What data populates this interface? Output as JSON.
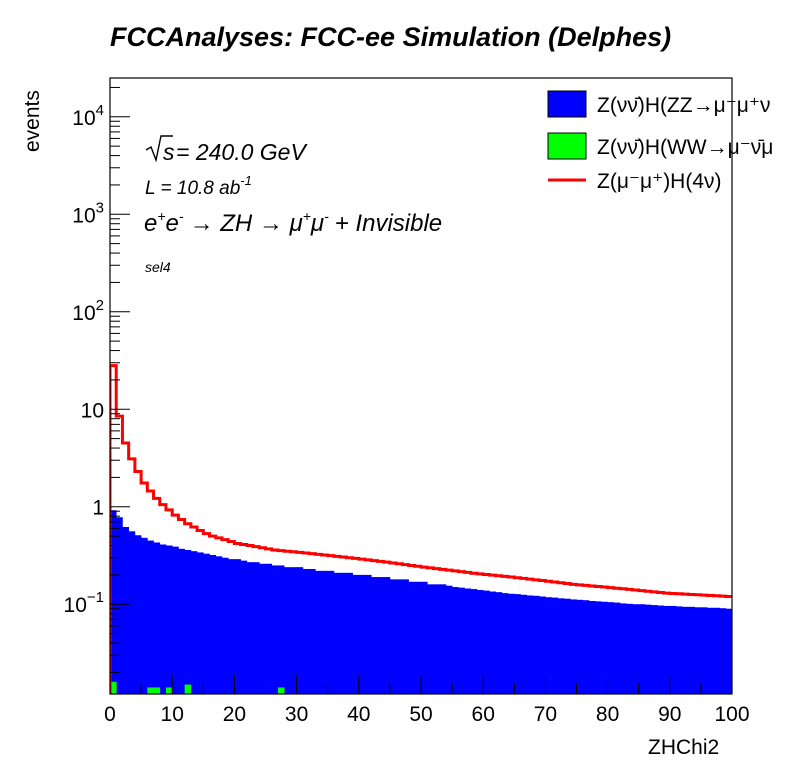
{
  "chart_data": {
    "type": "histogram",
    "title": "FCCAnalyses: FCC-ee Simulation (Delphes)",
    "xlabel": "ZHChi2",
    "ylabel": "events",
    "xlim": [
      0,
      100
    ],
    "ylim": [
      0.012,
      25000
    ],
    "yscale": "log",
    "x_ticks": [
      "0",
      "10",
      "20",
      "30",
      "40",
      "50",
      "60",
      "70",
      "80",
      "90",
      "100"
    ],
    "y_tick_labels": [
      {
        "value": 0.1,
        "base": "10",
        "exp": "−1"
      },
      {
        "value": 1,
        "base": "1",
        "exp": ""
      },
      {
        "value": 10,
        "base": "10",
        "exp": ""
      },
      {
        "value": 100,
        "base": "10",
        "exp": "2"
      },
      {
        "value": 1000,
        "base": "10",
        "exp": "3"
      },
      {
        "value": 10000,
        "base": "10",
        "exp": "4"
      }
    ],
    "annotations": {
      "sqrt_s": "= 240.0 GeV",
      "lumi": "L = 10.8 ab",
      "lumi_exp": "-1",
      "process_e": "e",
      "process_ep": "+",
      "process_e2": "e",
      "process_em": "-",
      "process_mid": "→ ZH → μ",
      "process_mp": "+",
      "process_mu": "μ",
      "process_mm": "-",
      "process_end": "+ Invisible",
      "selection": "sel4"
    },
    "legend_position": "top-right",
    "bin_edges_start": 0,
    "bin_width": 1,
    "series": [
      {
        "name": "Z(νν̄)H(ZZ→μ⁻μ⁺ν",
        "style": "filled",
        "color": "#0000ff",
        "values": [
          0.92,
          0.78,
          0.62,
          0.56,
          0.51,
          0.48,
          0.45,
          0.43,
          0.41,
          0.4,
          0.39,
          0.37,
          0.36,
          0.35,
          0.34,
          0.33,
          0.32,
          0.31,
          0.3,
          0.29,
          0.29,
          0.28,
          0.27,
          0.27,
          0.26,
          0.26,
          0.25,
          0.25,
          0.24,
          0.24,
          0.24,
          0.23,
          0.23,
          0.22,
          0.22,
          0.22,
          0.21,
          0.21,
          0.21,
          0.2,
          0.2,
          0.2,
          0.19,
          0.19,
          0.19,
          0.18,
          0.18,
          0.18,
          0.17,
          0.17,
          0.17,
          0.16,
          0.16,
          0.16,
          0.155,
          0.15,
          0.148,
          0.145,
          0.143,
          0.14,
          0.138,
          0.135,
          0.133,
          0.13,
          0.128,
          0.127,
          0.125,
          0.123,
          0.122,
          0.12,
          0.118,
          0.117,
          0.115,
          0.114,
          0.112,
          0.111,
          0.11,
          0.108,
          0.107,
          0.106,
          0.105,
          0.104,
          0.102,
          0.101,
          0.1,
          0.1,
          0.099,
          0.098,
          0.097,
          0.096,
          0.096,
          0.095,
          0.094,
          0.094,
          0.093,
          0.093,
          0.092,
          0.092,
          0.091,
          0.09
        ]
      },
      {
        "name": "Z(νν̄)H(WW→μ⁻ν̄μ",
        "style": "filled",
        "color": "#00ff00",
        "values": [
          0.016,
          0,
          0,
          0,
          0,
          0,
          0.014,
          0.014,
          0,
          0.014,
          0,
          0,
          0.015,
          0,
          0,
          0,
          0,
          0,
          0,
          0,
          0,
          0,
          0,
          0,
          0,
          0,
          0,
          0.014,
          0,
          0,
          0,
          0,
          0,
          0,
          0,
          0,
          0,
          0,
          0,
          0,
          0,
          0,
          0,
          0,
          0,
          0,
          0,
          0,
          0,
          0,
          0,
          0,
          0,
          0,
          0,
          0,
          0,
          0,
          0,
          0,
          0,
          0,
          0,
          0,
          0,
          0,
          0,
          0,
          0,
          0,
          0,
          0,
          0,
          0,
          0,
          0,
          0,
          0,
          0,
          0,
          0,
          0,
          0,
          0,
          0,
          0,
          0,
          0,
          0,
          0,
          0,
          0,
          0,
          0,
          0,
          0,
          0,
          0,
          0,
          0
        ]
      },
      {
        "name": "Z(μ⁻μ⁺)H(4ν)",
        "style": "line",
        "color": "#ff0000",
        "values": [
          28,
          8.5,
          4.5,
          3.1,
          2.3,
          1.75,
          1.45,
          1.22,
          1.05,
          0.93,
          0.82,
          0.74,
          0.67,
          0.62,
          0.57,
          0.53,
          0.5,
          0.48,
          0.46,
          0.44,
          0.42,
          0.41,
          0.4,
          0.39,
          0.38,
          0.37,
          0.36,
          0.355,
          0.35,
          0.345,
          0.34,
          0.335,
          0.33,
          0.325,
          0.32,
          0.315,
          0.31,
          0.305,
          0.3,
          0.295,
          0.29,
          0.285,
          0.28,
          0.275,
          0.27,
          0.265,
          0.26,
          0.255,
          0.25,
          0.245,
          0.24,
          0.236,
          0.232,
          0.228,
          0.224,
          0.22,
          0.216,
          0.212,
          0.208,
          0.205,
          0.202,
          0.199,
          0.196,
          0.193,
          0.19,
          0.187,
          0.184,
          0.181,
          0.178,
          0.175,
          0.172,
          0.169,
          0.166,
          0.163,
          0.16,
          0.158,
          0.156,
          0.154,
          0.152,
          0.15,
          0.148,
          0.146,
          0.144,
          0.142,
          0.14,
          0.138,
          0.136,
          0.134,
          0.132,
          0.13,
          0.129,
          0.128,
          0.127,
          0.126,
          0.125,
          0.124,
          0.123,
          0.122,
          0.121,
          0.12
        ]
      }
    ]
  }
}
